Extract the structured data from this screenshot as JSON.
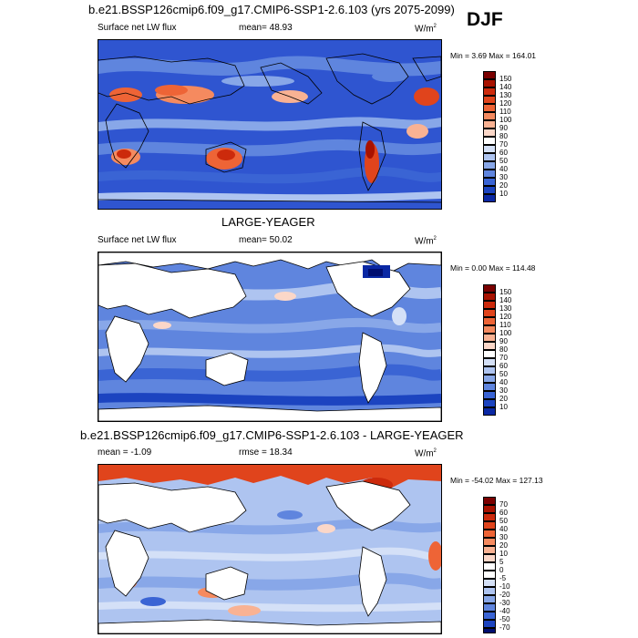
{
  "season": "DJF",
  "panels": [
    {
      "title": "b.e21.BSSP126cmip6.f09_g17.CMIP6-SSP1-2.6.103 (yrs 2075-2099)",
      "left_label": "Surface net LW flux",
      "mid_label": "mean=  48.93",
      "units": "W/m",
      "units_sup": "2",
      "minmax": "Min =   3.69 Max = 164.01",
      "colorbar_labels": [
        "150",
        "140",
        "130",
        "120",
        "110",
        "100",
        "90",
        "80",
        "70",
        "60",
        "50",
        "40",
        "30",
        "20",
        "10"
      ]
    },
    {
      "title": "LARGE-YEAGER",
      "left_label": "Surface net LW flux",
      "mid_label": "mean=  50.02",
      "units": "W/m",
      "units_sup": "2",
      "minmax": "Min =   0.00 Max = 114.48",
      "colorbar_labels": [
        "150",
        "140",
        "130",
        "120",
        "110",
        "100",
        "90",
        "80",
        "70",
        "60",
        "50",
        "40",
        "30",
        "20",
        "10"
      ]
    },
    {
      "title": "b.e21.BSSP126cmip6.f09_g17.CMIP6-SSP1-2.6.103 - LARGE-YEAGER",
      "left_label": "mean =  -1.09",
      "mid_label": "rmse =  18.34",
      "units": "W/m",
      "units_sup": "2",
      "minmax": "Min = -54.02 Max = 127.13",
      "colorbar_labels": [
        "70",
        "60",
        "50",
        "40",
        "30",
        "20",
        "10",
        "5",
        "0",
        "-5",
        "-10",
        "-20",
        "-30",
        "-40",
        "-50",
        "-70"
      ]
    }
  ],
  "colors": {
    "absolute_scale": [
      "#7a0000",
      "#a81200",
      "#cc2a0c",
      "#e0441c",
      "#ee6436",
      "#f58a5f",
      "#f9b293",
      "#fbd7c8",
      "#ffffff",
      "#d4e0f7",
      "#aec4f0",
      "#88a7e8",
      "#5f85de",
      "#3a64d4",
      "#1c44c0",
      "#0a28a4",
      "#000e70"
    ],
    "difference_scale": [
      "#7a0000",
      "#a81200",
      "#cc2a0c",
      "#e0441c",
      "#ee6436",
      "#f58a5f",
      "#f9b293",
      "#fbd7c8",
      "#ffffff",
      "#ffffff",
      "#d4e0f7",
      "#aec4f0",
      "#88a7e8",
      "#5f85de",
      "#3a64d4",
      "#1c44c0",
      "#000e70"
    ],
    "ocean_mid": "#5f85de",
    "land": "#ffffff"
  }
}
